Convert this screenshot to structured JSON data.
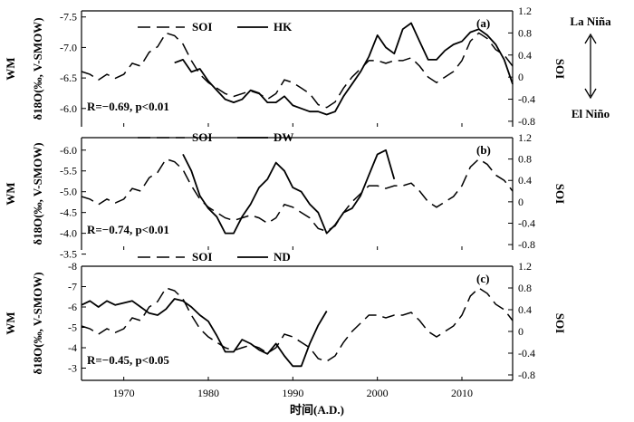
{
  "chart_data": [
    {
      "type": "line",
      "panel_label": "(a)",
      "left_label_top": "WM",
      "left_label_axis": "δ18O(‰, V-SMOW)",
      "right_label": "SOI",
      "annotation": "R=−0.69, p<0.01",
      "xlim": [
        1965,
        2016
      ],
      "ylim_left": [
        -5.7,
        -7.6
      ],
      "left_ticks": [
        "-7.5",
        "-7.0",
        "-6.5",
        "-6.0"
      ],
      "left_tick_values": [
        -7.5,
        -7.0,
        -6.5,
        -6.0
      ],
      "ylim_right": [
        -0.9,
        1.2
      ],
      "right_ticks": [
        "1.2",
        "0.8",
        "0.4",
        "0",
        "-0.4",
        "-0.8"
      ],
      "right_tick_values": [
        1.2,
        0.8,
        0.4,
        0,
        -0.4,
        -0.8
      ],
      "series": [
        {
          "name": "SOI",
          "style": "dashed",
          "axis": "right",
          "x": [
            1965,
            1966,
            1967,
            1968,
            1969,
            1970,
            1971,
            1972,
            1973,
            1974,
            1975,
            1976,
            1977,
            1978,
            1979,
            1980,
            1981,
            1982,
            1983,
            1984,
            1985,
            1986,
            1987,
            1988,
            1989,
            1990,
            1991,
            1992,
            1993,
            1994,
            1995,
            1996,
            1997,
            1998,
            1999,
            2000,
            2001,
            2002,
            2003,
            2004,
            2005,
            2006,
            2007,
            2008,
            2009,
            2010,
            2011,
            2012,
            2013,
            2014,
            2015,
            2016
          ],
          "y": [
            0.1,
            0.05,
            -0.05,
            0.05,
            -0.02,
            0.05,
            0.25,
            0.2,
            0.45,
            0.55,
            0.8,
            0.75,
            0.6,
            0.3,
            0.05,
            -0.1,
            -0.2,
            -0.3,
            -0.35,
            -0.3,
            -0.25,
            -0.3,
            -0.4,
            -0.3,
            -0.05,
            -0.1,
            -0.2,
            -0.3,
            -0.5,
            -0.55,
            -0.45,
            -0.2,
            0,
            0.15,
            0.3,
            0.3,
            0.25,
            0.3,
            0.3,
            0.35,
            0.2,
            0,
            -0.1,
            0,
            0.1,
            0.3,
            0.65,
            0.8,
            0.7,
            0.5,
            0.4,
            0.2
          ]
        },
        {
          "name": "HK",
          "style": "solid",
          "axis": "left",
          "x": [
            1976,
            1977,
            1978,
            1979,
            1980,
            1981,
            1982,
            1983,
            1984,
            1985,
            1986,
            1987,
            1988,
            1989,
            1990,
            1991,
            1992,
            1993,
            1994,
            1995,
            1996,
            1997,
            1998,
            1999,
            2000,
            2001,
            2002,
            2003,
            2004,
            2005,
            2006,
            2007,
            2008,
            2009,
            2010,
            2011,
            2012,
            2013,
            2014,
            2015,
            2016
          ],
          "y": [
            -6.75,
            -6.8,
            -6.6,
            -6.65,
            -6.45,
            -6.3,
            -6.15,
            -6.1,
            -6.15,
            -6.3,
            -6.25,
            -6.1,
            -6.1,
            -6.2,
            -6.05,
            -6.0,
            -5.95,
            -5.95,
            -5.9,
            -5.95,
            -6.2,
            -6.4,
            -6.6,
            -6.85,
            -7.2,
            -7.0,
            -6.9,
            -7.3,
            -7.4,
            -7.1,
            -6.8,
            -6.8,
            -6.95,
            -7.05,
            -7.1,
            -7.25,
            -7.3,
            -7.2,
            -7.05,
            -6.8,
            -6.4
          ]
        }
      ]
    },
    {
      "type": "line",
      "panel_label": "(b)",
      "left_label_top": "WM",
      "left_label_axis": "δ18O(‰, V-SMOW)",
      "right_label": "SOI",
      "annotation": "R=−0.74, p<0.01",
      "xlim": [
        1965,
        2016
      ],
      "ylim_left": [
        -3.6,
        -6.3
      ],
      "left_ticks": [
        "-6.0",
        "-5.5",
        "-5.0",
        "-4.5",
        "-4.0",
        "-3.5"
      ],
      "left_tick_values": [
        -6.0,
        -5.5,
        -5.0,
        -4.5,
        -4.0,
        -3.5
      ],
      "ylim_right": [
        -0.9,
        1.2
      ],
      "right_ticks": [
        "1.2",
        "0.8",
        "0.4",
        "0",
        "-0.4",
        "-0.8"
      ],
      "right_tick_values": [
        1.2,
        0.8,
        0.4,
        0,
        -0.4,
        -0.8
      ],
      "series": [
        {
          "name": "SOI",
          "style": "dashed",
          "axis": "right",
          "x": [
            1965,
            1966,
            1967,
            1968,
            1969,
            1970,
            1971,
            1972,
            1973,
            1974,
            1975,
            1976,
            1977,
            1978,
            1979,
            1980,
            1981,
            1982,
            1983,
            1984,
            1985,
            1986,
            1987,
            1988,
            1989,
            1990,
            1991,
            1992,
            1993,
            1994,
            1995,
            1996,
            1997,
            1998,
            1999,
            2000,
            2001,
            2002,
            2003,
            2004,
            2005,
            2006,
            2007,
            2008,
            2009,
            2010,
            2011,
            2012,
            2013,
            2014,
            2015,
            2016
          ],
          "y": [
            0.1,
            0.05,
            -0.05,
            0.05,
            -0.02,
            0.05,
            0.25,
            0.2,
            0.45,
            0.55,
            0.8,
            0.75,
            0.6,
            0.3,
            0.05,
            -0.1,
            -0.2,
            -0.3,
            -0.35,
            -0.3,
            -0.25,
            -0.3,
            -0.4,
            -0.3,
            -0.05,
            -0.1,
            -0.2,
            -0.3,
            -0.5,
            -0.55,
            -0.45,
            -0.2,
            0,
            0.15,
            0.3,
            0.3,
            0.25,
            0.3,
            0.3,
            0.35,
            0.2,
            0,
            -0.1,
            0,
            0.1,
            0.3,
            0.65,
            0.8,
            0.7,
            0.5,
            0.4,
            0.2
          ]
        },
        {
          "name": "DW",
          "style": "solid",
          "axis": "left",
          "x": [
            1977,
            1978,
            1979,
            1980,
            1981,
            1982,
            1983,
            1984,
            1985,
            1986,
            1987,
            1988,
            1989,
            1990,
            1991,
            1992,
            1993,
            1994,
            1995,
            1996,
            1997,
            1998,
            1999,
            2000,
            2001,
            2002
          ],
          "y": [
            -5.9,
            -5.5,
            -4.9,
            -4.6,
            -4.4,
            -4.0,
            -4.0,
            -4.4,
            -4.7,
            -5.1,
            -5.3,
            -5.7,
            -5.5,
            -5.1,
            -5.0,
            -4.7,
            -4.5,
            -4.0,
            -4.2,
            -4.5,
            -4.6,
            -4.9,
            -5.4,
            -5.9,
            -6.0,
            -5.3
          ]
        }
      ]
    },
    {
      "type": "line",
      "panel_label": "(c)",
      "left_label_top": "WM",
      "left_label_axis": "δ18O(‰, V-SMOW)",
      "right_label": "SOI",
      "annotation": "R=−0.45, p<0.05",
      "xlim": [
        1965,
        2016
      ],
      "ylim_left": [
        -2.4,
        -8.0
      ],
      "left_ticks": [
        "-8",
        "-7",
        "-6",
        "-5",
        "-4",
        "-3"
      ],
      "left_tick_values": [
        -8,
        -7,
        -6,
        -5,
        -4,
        -3
      ],
      "ylim_right": [
        -0.9,
        1.2
      ],
      "right_ticks": [
        "1.2",
        "0.8",
        "0.4",
        "0",
        "-0.4",
        "-0.8"
      ],
      "right_tick_values": [
        1.2,
        0.8,
        0.4,
        0,
        -0.4,
        -0.8
      ],
      "series": [
        {
          "name": "SOI",
          "style": "dashed",
          "axis": "right",
          "x": [
            1965,
            1966,
            1967,
            1968,
            1969,
            1970,
            1971,
            1972,
            1973,
            1974,
            1975,
            1976,
            1977,
            1978,
            1979,
            1980,
            1981,
            1982,
            1983,
            1984,
            1985,
            1986,
            1987,
            1988,
            1989,
            1990,
            1991,
            1992,
            1993,
            1994,
            1995,
            1996,
            1997,
            1998,
            1999,
            2000,
            2001,
            2002,
            2003,
            2004,
            2005,
            2006,
            2007,
            2008,
            2009,
            2010,
            2011,
            2012,
            2013,
            2014,
            2015,
            2016
          ],
          "y": [
            0.1,
            0.05,
            -0.05,
            0.05,
            -0.02,
            0.05,
            0.25,
            0.2,
            0.45,
            0.55,
            0.8,
            0.75,
            0.6,
            0.3,
            0.05,
            -0.1,
            -0.2,
            -0.3,
            -0.35,
            -0.3,
            -0.25,
            -0.3,
            -0.4,
            -0.3,
            -0.05,
            -0.1,
            -0.2,
            -0.3,
            -0.5,
            -0.55,
            -0.45,
            -0.2,
            0,
            0.15,
            0.3,
            0.3,
            0.25,
            0.3,
            0.3,
            0.35,
            0.2,
            0,
            -0.1,
            0,
            0.1,
            0.3,
            0.65,
            0.8,
            0.7,
            0.5,
            0.4,
            0.2
          ]
        },
        {
          "name": "ND",
          "style": "solid",
          "axis": "left",
          "x": [
            1965,
            1966,
            1967,
            1968,
            1969,
            1970,
            1971,
            1972,
            1973,
            1974,
            1975,
            1976,
            1977,
            1978,
            1979,
            1980,
            1981,
            1982,
            1983,
            1984,
            1985,
            1986,
            1987,
            1988,
            1989,
            1990,
            1991,
            1992,
            1993,
            1994
          ],
          "y": [
            -6.1,
            -6.3,
            -6.0,
            -6.3,
            -6.1,
            -6.2,
            -6.3,
            -6.0,
            -5.7,
            -5.6,
            -5.9,
            -6.4,
            -6.3,
            -6.0,
            -5.6,
            -5.3,
            -4.6,
            -3.8,
            -3.8,
            -4.4,
            -4.2,
            -3.9,
            -3.7,
            -4.2,
            -3.6,
            -3.1,
            -3.1,
            -4.2,
            -5.1,
            -5.8
          ]
        }
      ]
    }
  ],
  "legend_a": {
    "dashed": "SOI",
    "solid": "HK"
  },
  "legend_b": {
    "dashed": "SOI",
    "solid": "DW"
  },
  "legend_c": {
    "dashed": "SOI",
    "solid": "ND"
  },
  "x_ticks": [
    "1970",
    "1980",
    "1990",
    "2000",
    "2010"
  ],
  "x_tick_values": [
    1970,
    1980,
    1990,
    2000,
    2010
  ],
  "xlabel": "时间(A.D.)",
  "side_note": {
    "top": "La Niña",
    "bottom": "El Niño"
  }
}
